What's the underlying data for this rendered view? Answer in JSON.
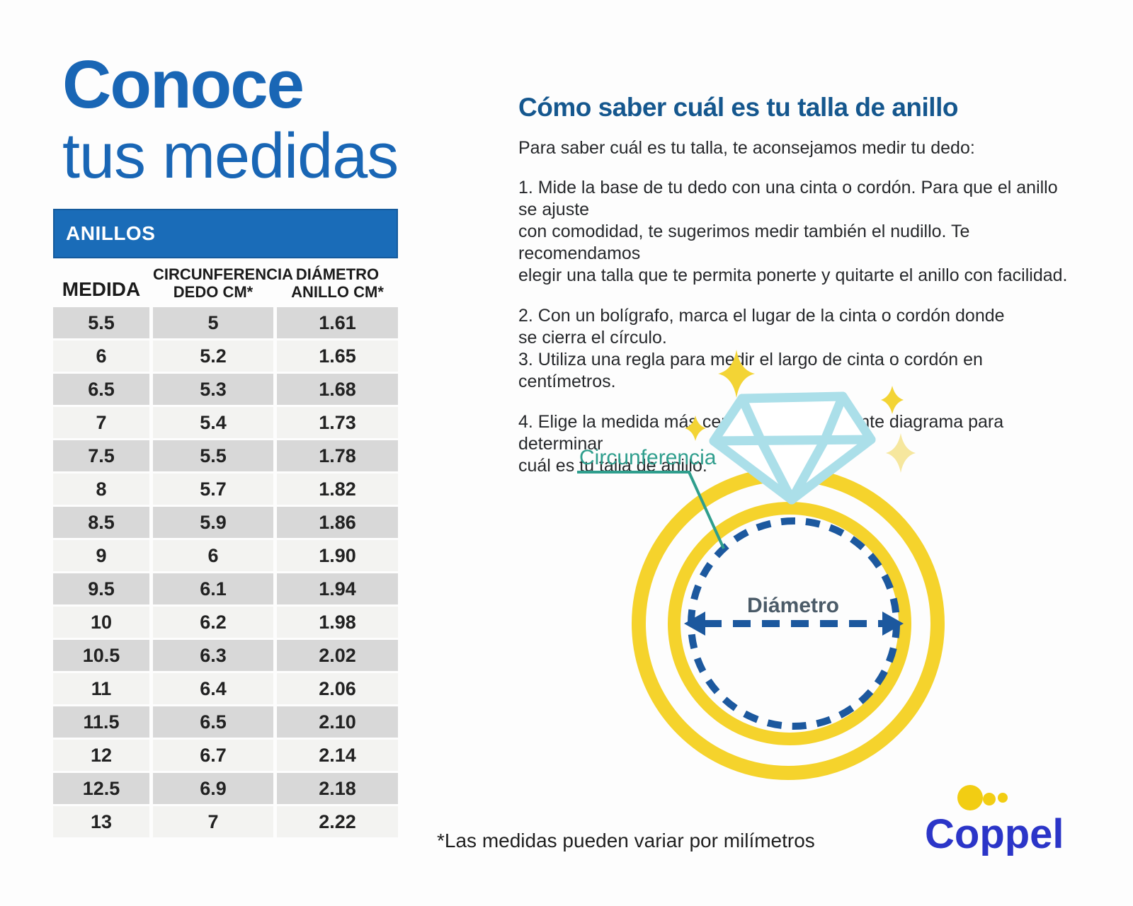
{
  "page": {
    "background": "#fdfdfd"
  },
  "title": {
    "line1": "Conoce",
    "line2": "tus medidas",
    "color": "#1966B5"
  },
  "table": {
    "header": "ANILLOS",
    "header_bg": "#1A6CB8",
    "header_text_color": "#ffffff",
    "columns": [
      "MEDIDA",
      "CIRCUNFERENCIA\nDEDO CM*",
      "DIÁMETRO\nANILLO CM*"
    ],
    "rows": [
      [
        "5.5",
        "5",
        "1.61"
      ],
      [
        "6",
        "5.2",
        "1.65"
      ],
      [
        "6.5",
        "5.3",
        "1.68"
      ],
      [
        "7",
        "5.4",
        "1.73"
      ],
      [
        "7.5",
        "5.5",
        "1.78"
      ],
      [
        "8",
        "5.7",
        "1.82"
      ],
      [
        "8.5",
        "5.9",
        "1.86"
      ],
      [
        "9",
        "6",
        "1.90"
      ],
      [
        "9.5",
        "6.1",
        "1.94"
      ],
      [
        "10",
        "6.2",
        "1.98"
      ],
      [
        "10.5",
        "6.3",
        "2.02"
      ],
      [
        "11",
        "6.4",
        "2.06"
      ],
      [
        "11.5",
        "6.5",
        "2.10"
      ],
      [
        "12",
        "6.7",
        "2.14"
      ],
      [
        "12.5",
        "6.9",
        "2.18"
      ],
      [
        "13",
        "7",
        "2.22"
      ]
    ],
    "row_color_dark": "#D8D8D8",
    "row_color_light": "#F3F3F1"
  },
  "guide": {
    "heading": "Cómo saber cuál es tu talla de anillo",
    "heading_color": "#15578E",
    "intro": "Para saber cuál es tu talla, te aconsejamos medir tu dedo:",
    "steps": [
      "1. Mide la base de tu dedo con una cinta o cordón. Para que el anillo se ajuste\ncon comodidad, te sugerimos medir también el nudillo. Te recomendamos\nelegir una talla que te permita ponerte y quitarte el anillo con facilidad.",
      "2. Con un bolígrafo, marca el lugar de la cinta o cordón donde\nse cierra el círculo.",
      "3. Utiliza una regla para medir el largo de cinta o cordón en centímetros.",
      "4. Elige la medida más cercana en el siguiente diagrama para determinar\ncuál es tu talla de anillo."
    ]
  },
  "diagram": {
    "circumference_label": "Circunferencia",
    "diameter_label": "Diámetro",
    "ring_color": "#F5D32C",
    "diamond_color": "#ABDFE9",
    "dash_color": "#1C589E",
    "label_teal": "#2F9E8D",
    "diameter_label_color": "#4B5B68",
    "sparkle_bright": "#F3D435",
    "sparkle_pale": "#F6E79E"
  },
  "footnote": "*Las medidas pueden variar por milímetros",
  "logo": {
    "text": "Coppel",
    "text_color": "#2B35C8",
    "dot_color": "#F2CD13"
  }
}
